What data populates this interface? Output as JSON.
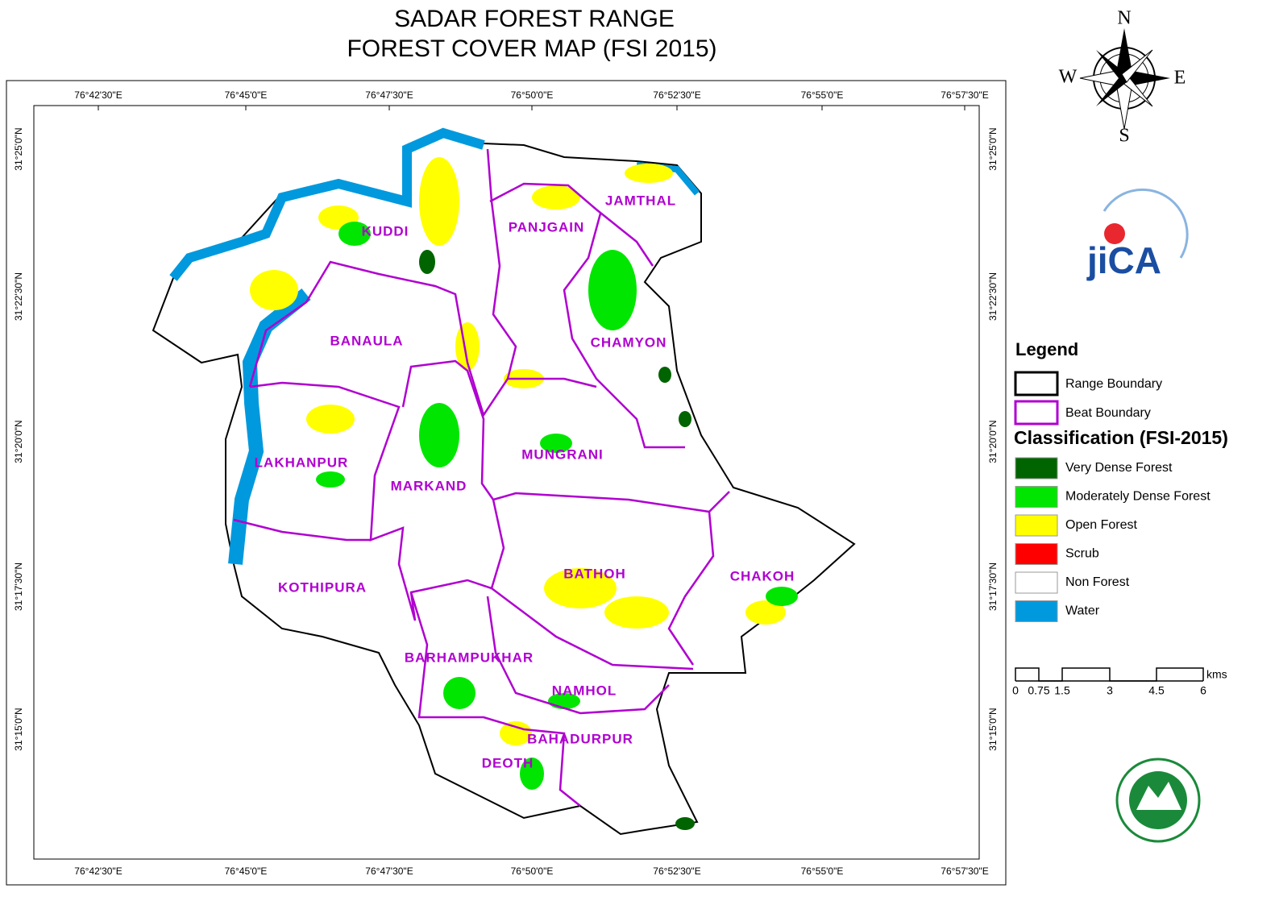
{
  "title": [
    "SADAR FOREST RANGE",
    "FOREST COVER MAP (FSI 2015)"
  ],
  "compass": {
    "north": "N",
    "south": "S",
    "east": "E",
    "west": "W"
  },
  "longitude_labels": [
    "76°42'30\"E",
    "76°45'0\"E",
    "76°47'30\"E",
    "76°50'0\"E",
    "76°52'30\"E",
    "76°55'0\"E",
    "76°57'30\"E"
  ],
  "latitude_labels": [
    "31°25'0\"N",
    "31°22'30\"N",
    "31°20'0\"N",
    "31°17'30\"N",
    "31°15'0\"N"
  ],
  "beats": [
    "KUDDI",
    "PANJGAIN",
    "JAMTHAL",
    "BANAULA",
    "CHAMYON",
    "LAKHANPUR",
    "MARKAND",
    "MUNGRANI",
    "BATHOH",
    "CHAKOH",
    "KOTHIPURA",
    "BARHAMPUKHAR",
    "NAMHOL",
    "BAHADURPUR",
    "DEOTH"
  ],
  "logo": "jiCA",
  "legend": {
    "title": "Legend",
    "boundaries": [
      {
        "label": "Range Boundary",
        "color": "#000000"
      },
      {
        "label": "Beat Boundary",
        "color": "#b000d0"
      }
    ],
    "classification_title": "Classification (FSI-2015)",
    "classes": [
      {
        "label": "Very Dense Forest",
        "color": "#006400"
      },
      {
        "label": "Moderately Dense Forest",
        "color": "#00e600"
      },
      {
        "label": "Open Forest",
        "color": "#ffff00"
      },
      {
        "label": "Scrub",
        "color": "#ff0000"
      },
      {
        "label": "Non Forest",
        "color": "#ffffff"
      },
      {
        "label": "Water",
        "color": "#0099dd"
      }
    ]
  },
  "scale_bar": {
    "unit": "kms",
    "labels": [
      "0",
      "0.75",
      "1.5",
      "3",
      "4.5",
      "6"
    ]
  }
}
